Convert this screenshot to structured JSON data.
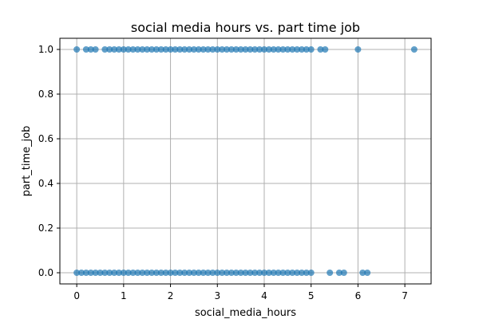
{
  "colors": {
    "point": "#1f77b4",
    "grid": "#b0b0b0",
    "frame": "#000000"
  },
  "chart_data": {
    "type": "scatter",
    "title": "social media hours vs. part time job",
    "xlabel": "social_media_hours",
    "ylabel": "part_time_job",
    "xlim": [
      -0.36,
      7.56
    ],
    "ylim": [
      -0.05,
      1.05
    ],
    "xticks": [
      0,
      1,
      2,
      3,
      4,
      5,
      6,
      7
    ],
    "yticks": [
      0.0,
      0.2,
      0.4,
      0.6,
      0.8,
      1.0
    ],
    "xtick_labels": [
      "0",
      "1",
      "2",
      "3",
      "4",
      "5",
      "6",
      "7"
    ],
    "ytick_labels": [
      "0.0",
      "0.2",
      "0.4",
      "0.6",
      "0.8",
      "1.0"
    ],
    "grid": true,
    "marker_alpha": 0.7,
    "series": [
      {
        "y": 1,
        "x": [
          0.0,
          0.2,
          0.3,
          0.4,
          0.6,
          0.7,
          0.8,
          0.9,
          1.0,
          1.1,
          1.2,
          1.3,
          1.4,
          1.5,
          1.6,
          1.7,
          1.8,
          1.9,
          2.0,
          2.1,
          2.2,
          2.3,
          2.4,
          2.5,
          2.6,
          2.7,
          2.8,
          2.9,
          3.0,
          3.1,
          3.2,
          3.3,
          3.4,
          3.5,
          3.6,
          3.7,
          3.8,
          3.9,
          4.0,
          4.1,
          4.2,
          4.3,
          4.4,
          4.5,
          4.6,
          4.7,
          4.8,
          4.9,
          5.0,
          5.2,
          5.3,
          6.0,
          7.2
        ]
      },
      {
        "y": 0,
        "x": [
          0.0,
          0.1,
          0.2,
          0.3,
          0.4,
          0.5,
          0.6,
          0.7,
          0.8,
          0.9,
          1.0,
          1.1,
          1.2,
          1.3,
          1.4,
          1.5,
          1.6,
          1.7,
          1.8,
          1.9,
          2.0,
          2.1,
          2.2,
          2.3,
          2.4,
          2.5,
          2.6,
          2.7,
          2.8,
          2.9,
          3.0,
          3.1,
          3.2,
          3.3,
          3.4,
          3.5,
          3.6,
          3.7,
          3.8,
          3.9,
          4.0,
          4.1,
          4.2,
          4.3,
          4.4,
          4.5,
          4.6,
          4.7,
          4.8,
          4.9,
          5.0,
          5.4,
          5.6,
          5.7,
          6.1,
          6.2
        ]
      }
    ]
  }
}
